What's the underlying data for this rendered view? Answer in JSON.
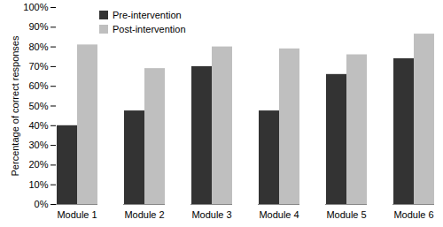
{
  "chart_data": {
    "type": "bar",
    "categories": [
      "Module 1",
      "Module 2",
      "Module 3",
      "Module 4",
      "Module 5",
      "Module 6"
    ],
    "series": [
      {
        "name": "Pre-intervention",
        "color": "#333333",
        "values": [
          40,
          47.5,
          70,
          47.5,
          66,
          74
        ]
      },
      {
        "name": "Post-intervention",
        "color": "#bfbfbf",
        "values": [
          81,
          69,
          80,
          79,
          76,
          86.5
        ]
      }
    ],
    "y_label": "Percentage of correct responses",
    "ylim": [
      0,
      100
    ],
    "yticks": [
      {
        "value": 0,
        "label": "0%"
      },
      {
        "value": 10,
        "label": "10%"
      },
      {
        "value": 20,
        "label": "20%"
      },
      {
        "value": 30,
        "label": "30%"
      },
      {
        "value": 40,
        "label": "40%"
      },
      {
        "value": 50,
        "label": "50%"
      },
      {
        "value": 60,
        "label": "60%"
      },
      {
        "value": 70,
        "label": "70%"
      },
      {
        "value": 80,
        "label": "80%"
      },
      {
        "value": 90,
        "label": "90%"
      },
      {
        "value": 100,
        "label": "100%"
      }
    ],
    "grid": false,
    "legend": "top-left"
  }
}
